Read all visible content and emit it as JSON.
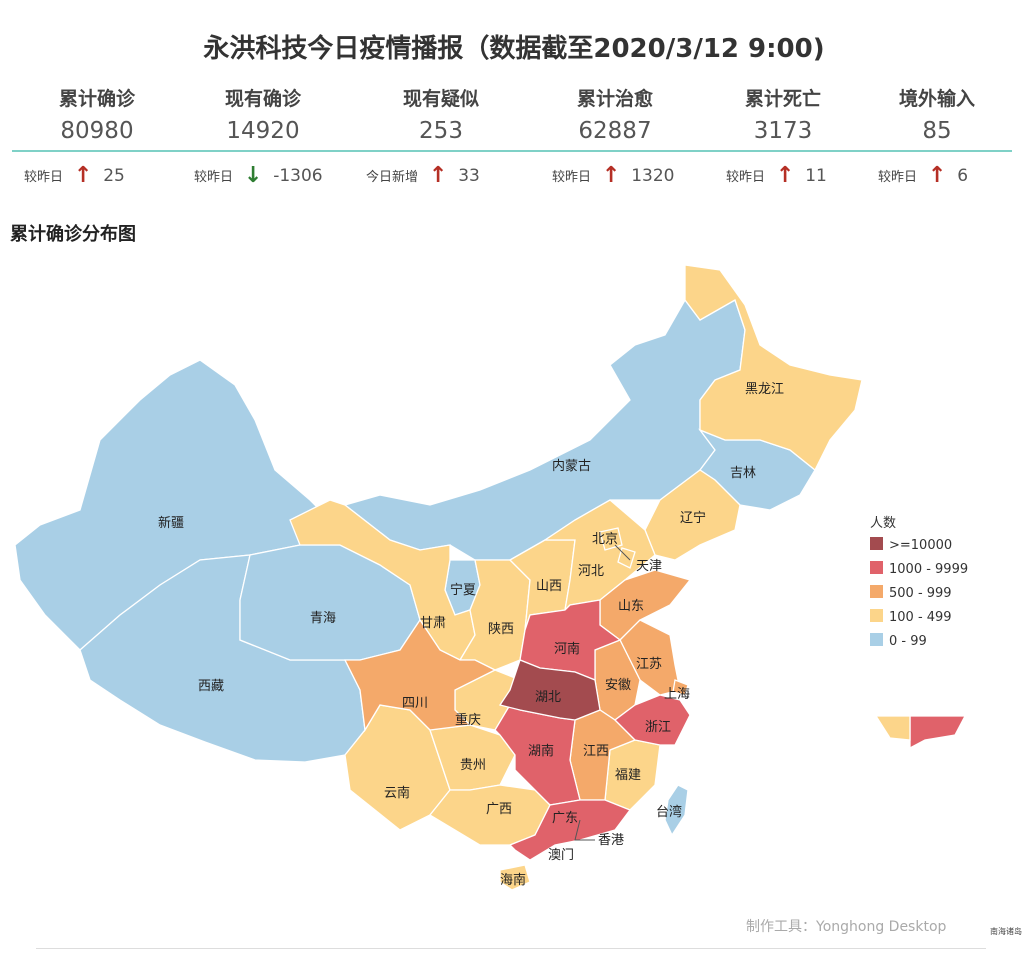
{
  "title": "永洪科技今日疫情播报（数据截至2020/3/12 9:00)",
  "stats": [
    {
      "label": "累计确诊",
      "value": "80980",
      "delta_label": "较昨日",
      "delta": "25",
      "dir": "up"
    },
    {
      "label": "现有确诊",
      "value": "14920",
      "delta_label": "较昨日",
      "delta": "-1306",
      "dir": "down"
    },
    {
      "label": "现有疑似",
      "value": "253",
      "delta_label": "今日新增",
      "delta": "33",
      "dir": "up"
    },
    {
      "label": "累计治愈",
      "value": "62887",
      "delta_label": "较昨日",
      "delta": "1320",
      "dir": "up"
    },
    {
      "label": "累计死亡",
      "value": "3173",
      "delta_label": "较昨日",
      "delta": "11",
      "dir": "up"
    },
    {
      "label": "境外输入",
      "value": "85",
      "delta_label": "较昨日",
      "delta": "6",
      "dir": "up"
    }
  ],
  "map": {
    "title": "累计确诊分布图",
    "legend_title": "人数",
    "legend": [
      {
        "label": ">=10000",
        "color": "#a34b4f"
      },
      {
        "label": "1000 - 9999",
        "color": "#e0626a"
      },
      {
        "label": "500 - 999",
        "color": "#f4a96a"
      },
      {
        "label": "100 - 499",
        "color": "#fcd58a"
      },
      {
        "label": "0 - 99",
        "color": "#a9cfe6"
      }
    ],
    "labels": {
      "heilongjiang": "黑龙江",
      "jilin": "吉林",
      "liaoning": "辽宁",
      "neimenggu": "内蒙古",
      "xinjiang": "新疆",
      "xizang": "西藏",
      "qinghai": "青海",
      "gansu": "甘肃",
      "ningxia": "宁夏",
      "shaanxi": "陕西",
      "shanxi": "山西",
      "beijing": "北京",
      "tianjin": "天津",
      "hebei": "河北",
      "shandong": "山东",
      "henan": "河南",
      "jiangsu": "江苏",
      "anhui": "安徽",
      "shanghai": "上海",
      "hubei": "湖北",
      "zhejiang": "浙江",
      "sichuan": "四川",
      "chongqing": "重庆",
      "hunan": "湖南",
      "jiangxi": "江西",
      "fujian": "福建",
      "guizhou": "贵州",
      "yunnan": "云南",
      "guangxi": "广西",
      "guangdong": "广东",
      "hongkong": "香港",
      "macau": "澳门",
      "taiwan": "台湾",
      "hainan": "海南"
    }
  },
  "credit": "制作工具：Yonghong Desktop",
  "nanhai_label": "南海诸岛"
}
